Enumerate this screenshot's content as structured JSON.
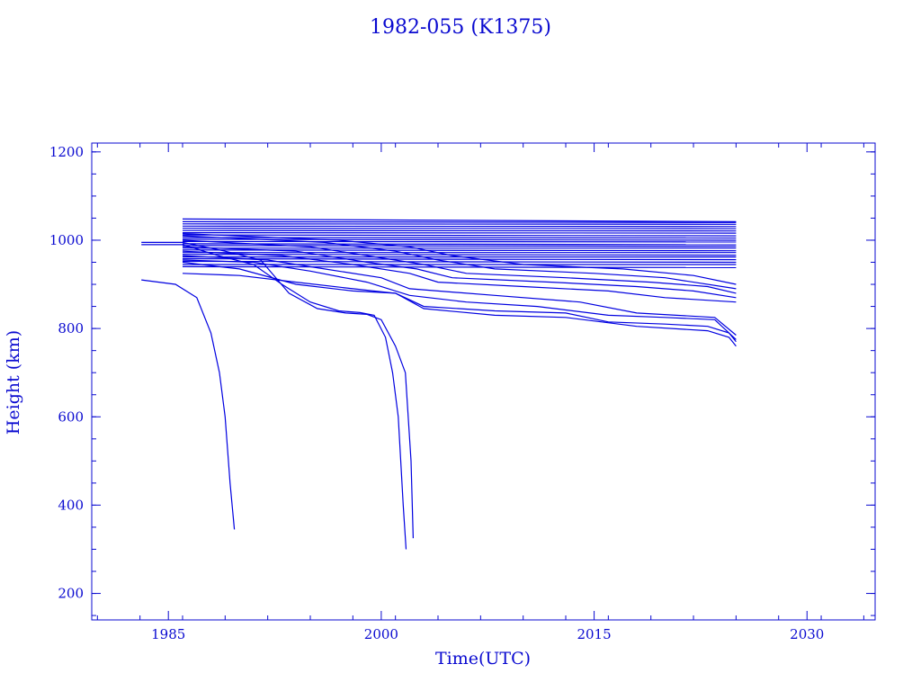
{
  "chart_data": {
    "type": "line",
    "title": "1982-055 (K1375)",
    "xlabel": "Time(UTC)",
    "ylabel": "Height (km)",
    "xlim": [
      1979.6,
      2034.8
    ],
    "ylim": [
      140,
      1220
    ],
    "x_ticks": [
      1985,
      2000,
      2015,
      2030
    ],
    "y_ticks": [
      200,
      400,
      600,
      800,
      1000,
      1200
    ],
    "x_tick_labels": [
      "1985",
      "2000",
      "2015",
      "2030"
    ],
    "y_tick_labels": [
      "200",
      "400",
      "600",
      "800",
      "1000",
      "1200"
    ],
    "x_minor_step": 3,
    "y_minor_step": 50,
    "grid": false,
    "legend": "none",
    "line_color": "#0000e0",
    "axis_color": "#0a0ad0",
    "series": [
      {
        "x": [
          1983.1,
          1985.5,
          1987.0,
          1988.0,
          1988.6,
          1989.0,
          1989.35,
          1989.65
        ],
        "y": [
          910,
          900,
          870,
          790,
          700,
          600,
          450,
          345
        ]
      },
      {
        "x": [
          1983.1,
          1986.0,
          1988.5,
          1991.0,
          1993.0,
          1995.0,
          1997.0,
          1998.5,
          1999.5,
          2000.3,
          2000.8,
          2001.2,
          2001.55,
          2001.75
        ],
        "y": [
          990,
          990,
          965,
          945,
          900,
          860,
          840,
          836,
          830,
          780,
          700,
          600,
          400,
          300
        ]
      },
      {
        "x": [
          1983.1,
          1986.0,
          1989.0,
          1991.5,
          1993.5,
          1995.5,
          1997.5,
          1999.0,
          2000.0,
          2001.0,
          2001.7,
          2002.1,
          2002.25
        ],
        "y": [
          995,
          995,
          975,
          955,
          880,
          845,
          835,
          832,
          820,
          760,
          700,
          500,
          325
        ]
      },
      {
        "x": [
          1986.0,
          1990.0,
          1994.0,
          1998.0,
          2001.0,
          2003.0,
          2008.0,
          2013.0,
          2018.0,
          2023.0,
          2024.5,
          2025.0
        ],
        "y": [
          925,
          920,
          905,
          890,
          880,
          845,
          830,
          825,
          805,
          795,
          780,
          760
        ]
      },
      {
        "x": [
          1986.0,
          1990.0,
          1994.0,
          1998.0,
          2001.0,
          2003.0,
          2008.0,
          2013.0,
          2016.0,
          2020.0,
          2023.0,
          2024.5,
          2025.0
        ],
        "y": [
          950,
          935,
          900,
          885,
          880,
          850,
          840,
          835,
          815,
          810,
          805,
          790,
          770
        ]
      },
      {
        "x": [
          1986.0,
          1991.0,
          1995.0,
          1999.0,
          2002.0,
          2006.0,
          2011.0,
          2016.0,
          2020.0,
          2023.5,
          2025.0
        ],
        "y": [
          955,
          950,
          930,
          905,
          875,
          860,
          850,
          830,
          825,
          820,
          775
        ]
      },
      {
        "x": [
          1986.0,
          1992.0,
          1996.0,
          2000.0,
          2002.0,
          2008.0,
          2014.0,
          2018.0,
          2023.5,
          2025.0
        ],
        "y": [
          965,
          955,
          935,
          915,
          890,
          875,
          860,
          835,
          825,
          785
        ]
      },
      {
        "x": [
          1986.0,
          1993.0,
          1998.0,
          2002.0,
          2004.0,
          2010.0,
          2016.0,
          2020.0,
          2025.0
        ],
        "y": [
          975,
          965,
          945,
          925,
          905,
          895,
          885,
          870,
          860
        ]
      },
      {
        "x": [
          1986.0,
          1994.0,
          1999.0,
          2002.5,
          2005.0,
          2012.0,
          2018.0,
          2022.0,
          2025.0
        ],
        "y": [
          985,
          975,
          950,
          935,
          915,
          905,
          895,
          885,
          870
        ]
      },
      {
        "x": [
          1986.0,
          1995.0,
          2000.0,
          2003.0,
          2006.0,
          2013.0,
          2019.0,
          2023.0,
          2025.0
        ],
        "y": [
          1000,
          985,
          960,
          945,
          925,
          915,
          905,
          895,
          880
        ]
      },
      {
        "x": [
          1986.0,
          1996.0,
          2001.0,
          2004.0,
          2008.0,
          2015.0,
          2020.0,
          2025.0
        ],
        "y": [
          1010,
          995,
          975,
          955,
          935,
          925,
          915,
          890
        ]
      },
      {
        "x": [
          1986.0,
          1997.0,
          2002.0,
          2005.0,
          2010.0,
          2017.0,
          2022.0,
          2025.0
        ],
        "y": [
          1015,
          1000,
          985,
          965,
          945,
          935,
          920,
          900
        ]
      },
      {
        "x": [
          1986.0,
          2025.0
        ],
        "y": [
          940,
          938
        ]
      },
      {
        "x": [
          1986.0,
          2025.0
        ],
        "y": [
          945,
          945
        ]
      },
      {
        "x": [
          1986.0,
          2025.0
        ],
        "y": [
          952,
          950
        ]
      },
      {
        "x": [
          1986.0,
          2025.0
        ],
        "y": [
          958,
          956
        ]
      },
      {
        "x": [
          1986.0,
          2025.0
        ],
        "y": [
          962,
          962
        ]
      },
      {
        "x": [
          1986.0,
          2025.0
        ],
        "y": [
          968,
          966
        ]
      },
      {
        "x": [
          1986.0,
          2025.0
        ],
        "y": [
          972,
          972
        ]
      },
      {
        "x": [
          1986.0,
          2025.0
        ],
        "y": [
          978,
          976
        ]
      },
      {
        "x": [
          1986.0,
          2025.0
        ],
        "y": [
          982,
          982
        ]
      },
      {
        "x": [
          1986.0,
          2025.0
        ],
        "y": [
          988,
          986
        ]
      },
      {
        "x": [
          1986.0,
          2025.0
        ],
        "y": [
          992,
          990
        ]
      },
      {
        "x": [
          1986.0,
          2025.0
        ],
        "y": [
          997,
          996
        ]
      },
      {
        "x": [
          1986.0,
          2025.0
        ],
        "y": [
          1002,
          1000
        ]
      },
      {
        "x": [
          1986.0,
          2025.0
        ],
        "y": [
          1006,
          1005
        ]
      },
      {
        "x": [
          1986.0,
          2025.0
        ],
        "y": [
          1012,
          1010
        ]
      },
      {
        "x": [
          1986.0,
          2025.0
        ],
        "y": [
          1017,
          1016
        ]
      },
      {
        "x": [
          1986.0,
          2025.0
        ],
        "y": [
          1022,
          1021
        ]
      },
      {
        "x": [
          1986.0,
          2025.0
        ],
        "y": [
          1027,
          1026
        ]
      },
      {
        "x": [
          1986.0,
          2025.0
        ],
        "y": [
          1032,
          1031
        ]
      },
      {
        "x": [
          1986.0,
          2025.0
        ],
        "y": [
          1037,
          1036
        ]
      },
      {
        "x": [
          1986.0,
          2025.0
        ],
        "y": [
          1042,
          1040
        ]
      },
      {
        "x": [
          1986.0,
          2025.0
        ],
        "y": [
          1048,
          1042
        ]
      }
    ]
  }
}
